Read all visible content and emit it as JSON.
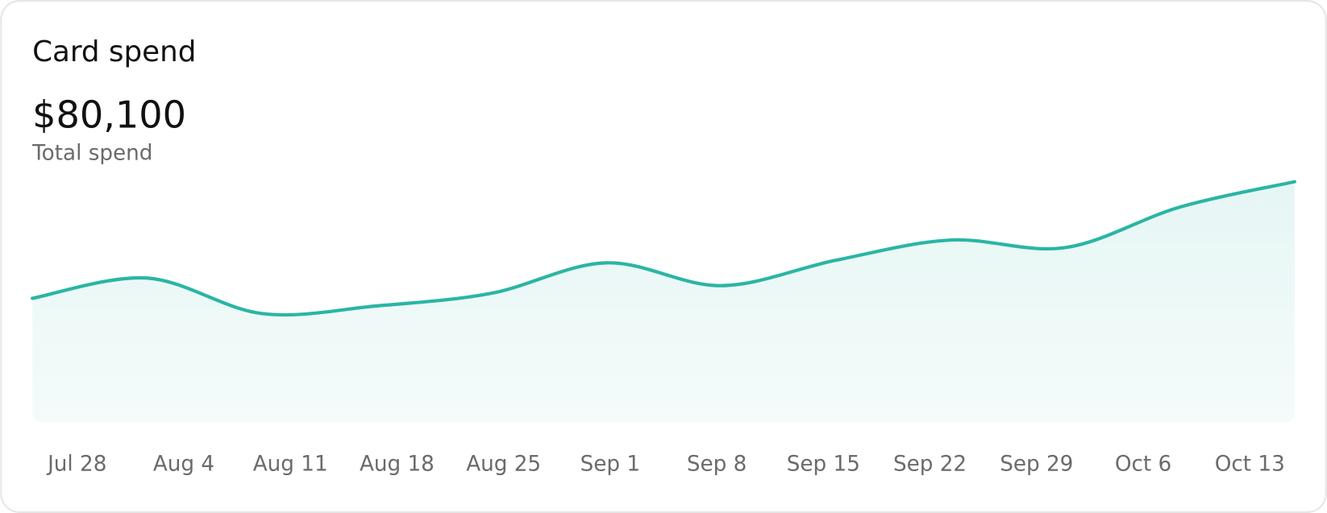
{
  "chart_data": {
    "type": "area",
    "title": "Card spend",
    "summary_value": "$80,100",
    "summary_label": "Total spend",
    "categories": [
      "Jul 28",
      "Aug 4",
      "Aug 11",
      "Aug 18",
      "Aug 25",
      "Sep 1",
      "Sep 8",
      "Sep 15",
      "Sep 22",
      "Sep 29",
      "Oct 6",
      "Oct 13"
    ],
    "values": [
      49,
      57,
      43,
      46,
      51,
      63,
      54,
      64,
      72,
      69,
      85,
      95
    ],
    "ylim": [
      0,
      100
    ],
    "color": "#2bb5a5"
  }
}
